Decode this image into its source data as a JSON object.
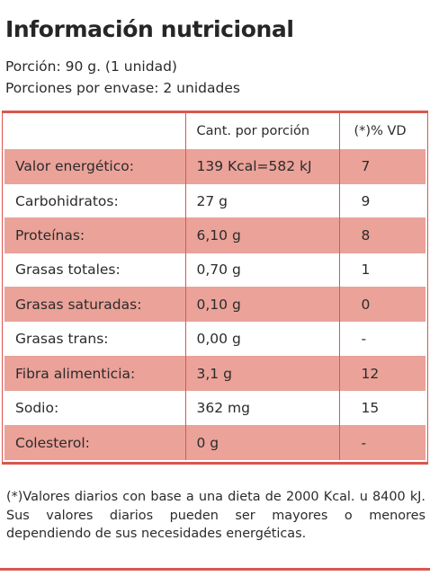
{
  "title": "Información nutricional",
  "serving": {
    "portion": "Porción: 90 g. (1 unidad)",
    "portions_per_package": "Porciones por envase: 2 unidades"
  },
  "table": {
    "headers": {
      "nutrient": "",
      "amount": "Cant. por porción",
      "daily_value": "(*)% VD"
    },
    "rows": [
      {
        "nutrient": "Valor energético:",
        "amount": "139 Kcal=582 kJ",
        "daily_value": "7"
      },
      {
        "nutrient": "Carbohidratos:",
        "amount": "27 g",
        "daily_value": "9"
      },
      {
        "nutrient": "Proteínas:",
        "amount": "6,10 g",
        "daily_value": "8"
      },
      {
        "nutrient": "Grasas totales:",
        "amount": "0,70 g",
        "daily_value": "1"
      },
      {
        "nutrient": "Grasas saturadas:",
        "amount": "0,10 g",
        "daily_value": "0"
      },
      {
        "nutrient": "Grasas trans:",
        "amount": "0,00 g",
        "daily_value": "-"
      },
      {
        "nutrient": "Fibra alimenticia:",
        "amount": "3,1 g",
        "daily_value": "12"
      },
      {
        "nutrient": "Sodio:",
        "amount": "362 mg",
        "daily_value": "15"
      },
      {
        "nutrient": "Colesterol:",
        "amount": "0 g",
        "daily_value": "-"
      }
    ]
  },
  "footnote": "(*)Valores diarios con base a una dieta de 2000 Kcal. u 8400 kJ. Sus valores diarios pueden ser mayores o menores dependiendo de sus necesidades energéticas.",
  "colors": {
    "accent": "#d9574f",
    "row_shade": "#eba299",
    "text": "#262626"
  }
}
